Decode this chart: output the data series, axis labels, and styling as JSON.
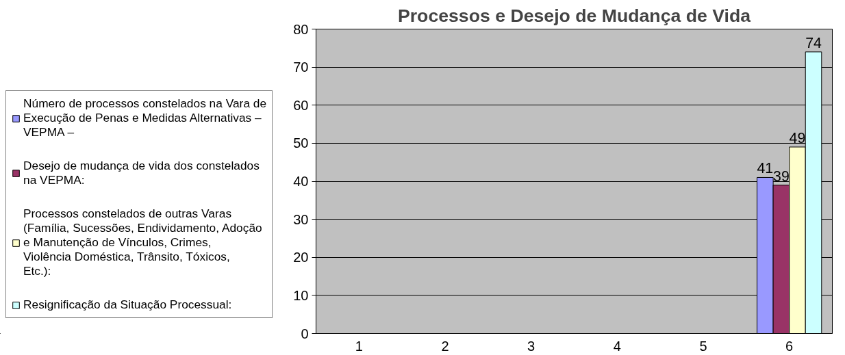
{
  "chart_data": {
    "type": "bar",
    "title": "Processos e Desejo de Mudança de Vida",
    "categories": [
      "1",
      "2",
      "3",
      "4",
      "5",
      "6"
    ],
    "series": [
      {
        "name": "Número de processos constelados na Vara de Execução de Penas e Medidas Alternativas – VEPMA –",
        "color": "#9999ff",
        "values": [
          null,
          null,
          null,
          null,
          null,
          41
        ]
      },
      {
        "name": "Desejo de mudança de vida dos constelados na VEPMA:",
        "color": "#993366",
        "values": [
          null,
          null,
          null,
          null,
          null,
          39
        ]
      },
      {
        "name": "Processos constelados de outras Varas (Família, Sucessões, Endividamento, Adoção e Manutenção de Vínculos, Crimes, Violência Doméstica, Trânsito, Tóxicos, Etc.):",
        "color": "#ffffcc",
        "values": [
          null,
          null,
          null,
          null,
          null,
          49
        ]
      },
      {
        "name": "Resignificação da Situação Processual:",
        "color": "#ccffff",
        "values": [
          null,
          null,
          null,
          null,
          null,
          74
        ]
      }
    ],
    "ylim": [
      0,
      80
    ],
    "yticks": [
      0,
      10,
      20,
      30,
      40,
      50,
      60,
      70,
      80
    ],
    "grid": "y",
    "legend": "left",
    "data_labels": true
  }
}
